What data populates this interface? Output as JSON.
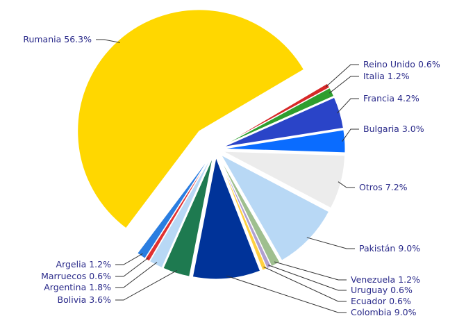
{
  "chart_data": {
    "type": "pie",
    "categories": [
      "Rumania",
      "Reino Unido",
      "Italia",
      "Francia",
      "Bulgaria",
      "Otros",
      "Pakistán",
      "Venezuela",
      "Uruguay",
      "Ecuador",
      "Colombia",
      "Bolivia",
      "Argentina",
      "Marruecos",
      "Argelia"
    ],
    "values": [
      56.3,
      0.6,
      1.2,
      4.2,
      3.0,
      7.2,
      9.0,
      1.2,
      0.6,
      0.6,
      9.0,
      3.6,
      1.8,
      0.6,
      1.2
    ],
    "value_labels": [
      "56.3%",
      "0.6%",
      "1.2%",
      "4.2%",
      "3.0%",
      "7.2%",
      "9.0%",
      "1.2%",
      "0.6%",
      "0.6%",
      "9.0%",
      "3.6%",
      "1.8%",
      "0.6%",
      "1.2%"
    ],
    "colors": [
      "#ffd700",
      "#d62828",
      "#2e9e2e",
      "#2a44c8",
      "#0a6cff",
      "#ececec",
      "#b8d8f5",
      "#9fbf8f",
      "#b0a0d0",
      "#ffd040",
      "#003399",
      "#1e7a50",
      "#b8d8f5",
      "#e03030",
      "#2a7de0"
    ]
  }
}
